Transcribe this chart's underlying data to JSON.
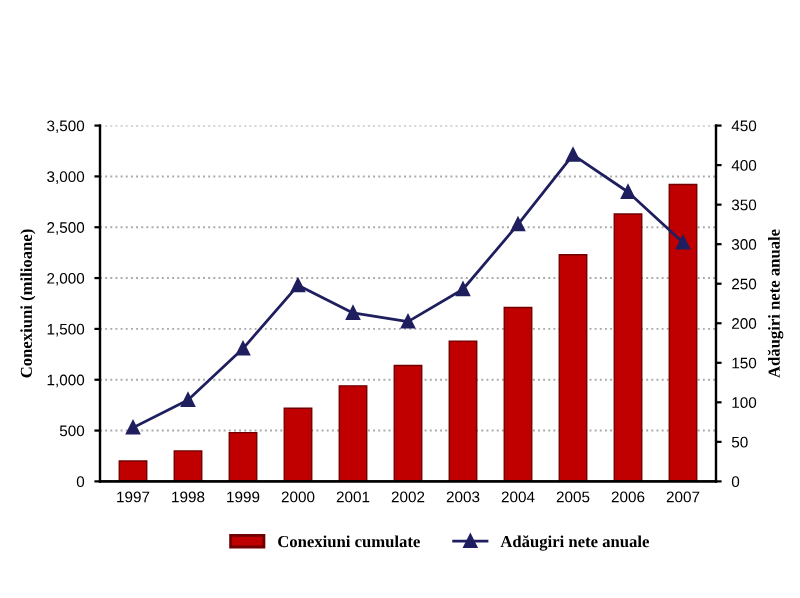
{
  "chart_data": {
    "type": "bar",
    "categories": [
      "1997",
      "1998",
      "1999",
      "2000",
      "2001",
      "2002",
      "2003",
      "2004",
      "2005",
      "2006",
      "2007"
    ],
    "series": [
      {
        "name": "Conexiuni cumulate",
        "color": "#c00000",
        "values": [
          200,
          300,
          480,
          720,
          940,
          1140,
          1380,
          1710,
          2230,
          2630,
          2920
        ]
      },
      {
        "name": "Adăugiri nete anuale",
        "type": "line",
        "axis": "y2",
        "color": "#1f1f5f",
        "marker": "triangle",
        "values": [
          68,
          103,
          168,
          248,
          213,
          202,
          243,
          325,
          413,
          366,
          302
        ]
      }
    ],
    "ylabel": "Conexiuni (milioane)",
    "y2label": "Adăugiri nete anuale",
    "ylim": [
      0,
      3500
    ],
    "yticks": [
      {
        "value": 0,
        "label": "0"
      },
      {
        "value": 500,
        "label": "500"
      },
      {
        "value": 1000,
        "label": "1,000"
      },
      {
        "value": 1500,
        "label": "1,500"
      },
      {
        "value": 2000,
        "label": "2,000"
      },
      {
        "value": 2500,
        "label": "2,500"
      },
      {
        "value": 3000,
        "label": "3,000"
      },
      {
        "value": 3500,
        "label": "3,500"
      }
    ],
    "y2lim": [
      0,
      450
    ],
    "y2ticks": [
      0,
      50,
      100,
      150,
      200,
      250,
      300,
      350,
      400,
      450
    ],
    "grid": "y",
    "legend": "bottom"
  }
}
